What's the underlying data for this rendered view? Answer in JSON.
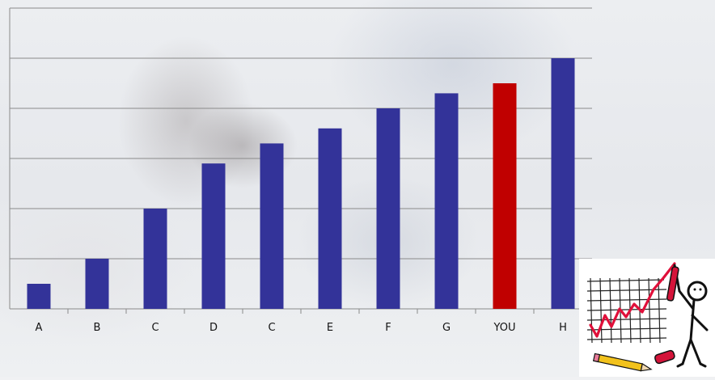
{
  "chart_data": {
    "type": "bar",
    "categories": [
      "A",
      "B",
      "C",
      "D",
      "C",
      "E",
      "F",
      "G",
      "YOU",
      "H"
    ],
    "values": [
      1,
      2,
      4,
      5.8,
      6.6,
      7.2,
      8,
      8.6,
      9,
      10
    ],
    "ylim": [
      0,
      12
    ],
    "grid": true,
    "colors": {
      "default_bar": "#333399",
      "highlight_bar": "#c00000",
      "highlight_category": "YOU",
      "gridline": "#8a8a8a"
    }
  },
  "clipart": {
    "icon": "stick-figure-presenting-rising-chart-icon"
  }
}
